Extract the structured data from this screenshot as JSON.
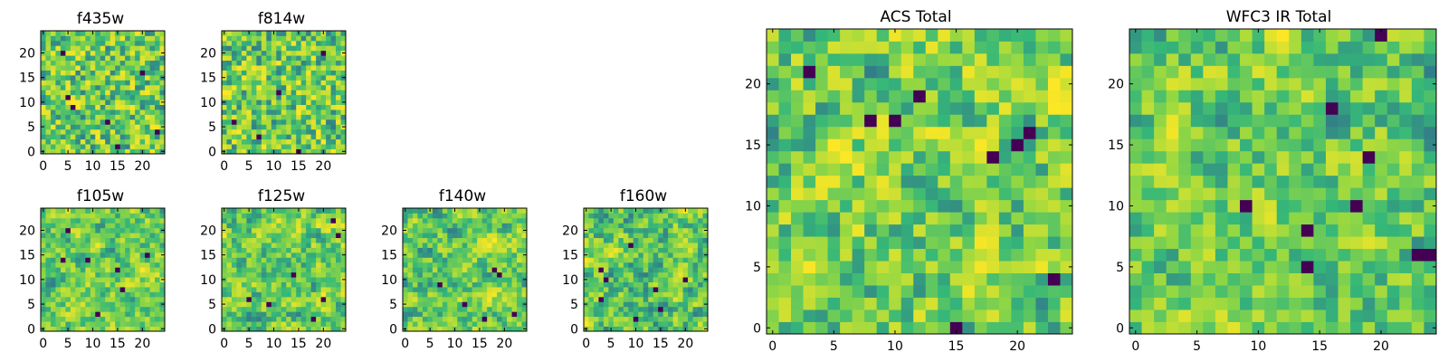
{
  "chart_data": [
    {
      "type": "heatmap",
      "title": "f435w",
      "size": 25,
      "xticks": [
        0,
        5,
        10,
        15,
        20
      ],
      "yticks": [
        0,
        5,
        10,
        15,
        20
      ],
      "seed": 435,
      "smooth": 0.1,
      "low_cells": [
        [
          6,
          9
        ],
        [
          5,
          11
        ],
        [
          13,
          6
        ],
        [
          20,
          16
        ],
        [
          23,
          4
        ],
        [
          4,
          20
        ],
        [
          15,
          1
        ]
      ]
    },
    {
      "type": "heatmap",
      "title": "f814w",
      "size": 25,
      "xticks": [
        0,
        5,
        10,
        15,
        20
      ],
      "yticks": [
        0,
        5,
        10,
        15,
        20
      ],
      "seed": 814,
      "smooth": 0.1,
      "low_cells": [
        [
          15,
          0
        ],
        [
          20,
          20
        ],
        [
          2,
          6
        ],
        [
          11,
          12
        ],
        [
          7,
          3
        ]
      ]
    },
    {
      "type": "heatmap",
      "title": "f105w",
      "size": 25,
      "xticks": [
        0,
        5,
        10,
        15,
        20
      ],
      "yticks": [
        0,
        5,
        10,
        15,
        20
      ],
      "seed": 105,
      "smooth": 0.55,
      "low_cells": [
        [
          5,
          20
        ],
        [
          9,
          14
        ],
        [
          15,
          12
        ],
        [
          16,
          8
        ],
        [
          11,
          3
        ],
        [
          21,
          15
        ],
        [
          4,
          14
        ]
      ]
    },
    {
      "type": "heatmap",
      "title": "f125w",
      "size": 25,
      "xticks": [
        0,
        5,
        10,
        15,
        20
      ],
      "yticks": [
        0,
        5,
        10,
        15,
        20
      ],
      "seed": 125,
      "smooth": 0.55,
      "low_cells": [
        [
          22,
          22
        ],
        [
          23,
          19
        ],
        [
          14,
          11
        ],
        [
          5,
          6
        ],
        [
          18,
          2
        ],
        [
          9,
          5
        ],
        [
          20,
          6
        ]
      ]
    },
    {
      "type": "heatmap",
      "title": "f140w",
      "size": 25,
      "xticks": [
        0,
        5,
        10,
        15,
        20
      ],
      "yticks": [
        0,
        5,
        10,
        15,
        20
      ],
      "seed": 140,
      "smooth": 0.55,
      "low_cells": [
        [
          18,
          12
        ],
        [
          19,
          11
        ],
        [
          12,
          5
        ],
        [
          16,
          2
        ],
        [
          7,
          9
        ],
        [
          22,
          3
        ]
      ]
    },
    {
      "type": "heatmap",
      "title": "f160w",
      "size": 25,
      "xticks": [
        0,
        5,
        10,
        15,
        20
      ],
      "yticks": [
        0,
        5,
        10,
        15,
        20
      ],
      "seed": 160,
      "smooth": 0.55,
      "low_cells": [
        [
          3,
          12
        ],
        [
          4,
          10
        ],
        [
          3,
          6
        ],
        [
          14,
          8
        ],
        [
          15,
          4
        ],
        [
          20,
          10
        ],
        [
          9,
          17
        ],
        [
          10,
          2
        ]
      ]
    },
    {
      "type": "heatmap",
      "title": "ACS Total",
      "size": 25,
      "xticks": [
        0,
        5,
        10,
        15,
        20
      ],
      "yticks": [
        0,
        5,
        10,
        15,
        20
      ],
      "seed": 1001,
      "smooth": 0.35,
      "low_cells": [
        [
          3,
          21
        ],
        [
          12,
          19
        ],
        [
          18,
          14
        ],
        [
          21,
          16
        ],
        [
          23,
          4
        ],
        [
          15,
          0
        ],
        [
          8,
          17
        ],
        [
          10,
          17
        ],
        [
          20,
          15
        ]
      ]
    },
    {
      "type": "heatmap",
      "title": "WFC3 IR Total",
      "size": 25,
      "xticks": [
        0,
        5,
        10,
        15,
        20
      ],
      "yticks": [
        0,
        5,
        10,
        15,
        20
      ],
      "seed": 2002,
      "smooth": 0.45,
      "low_cells": [
        [
          20,
          24
        ],
        [
          16,
          18
        ],
        [
          19,
          14
        ],
        [
          9,
          10
        ],
        [
          14,
          8
        ],
        [
          18,
          10
        ],
        [
          14,
          5
        ],
        [
          23,
          6
        ],
        [
          24,
          6
        ]
      ]
    }
  ],
  "colormap": [
    "#440154",
    "#31688e",
    "#35b779",
    "#90d743",
    "#fde725"
  ]
}
